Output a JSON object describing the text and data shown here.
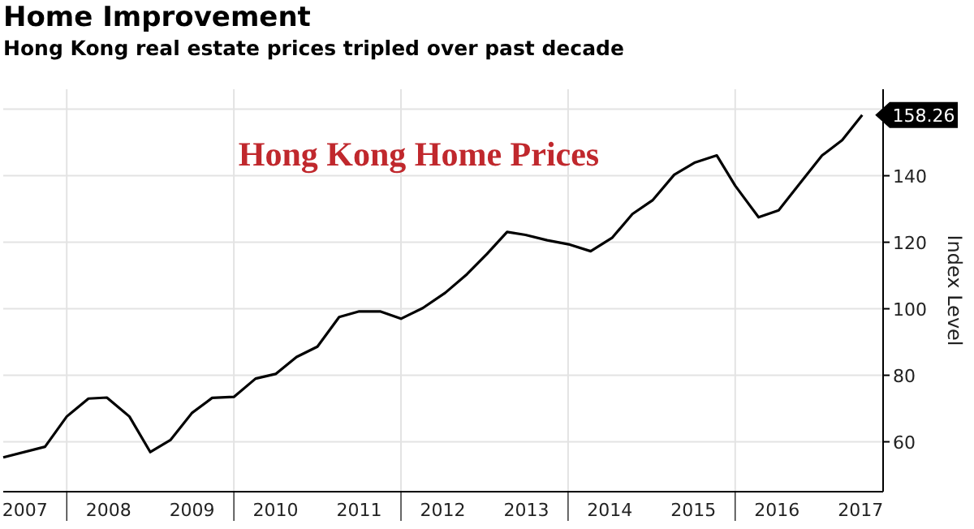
{
  "chart_data": {
    "type": "line",
    "title": "Home Improvement",
    "subtitle": "Hong Kong real estate prices tripled over past decade",
    "ylabel": "Index Level",
    "annotations": [
      "Hong Kong Home Prices",
      {
        "text": "158.26",
        "x": 2017.52,
        "y": 158.26
      }
    ],
    "x": [
      2007.24,
      2007.74,
      2008.0,
      2008.26,
      2008.48,
      2008.75,
      2009.0,
      2009.24,
      2009.5,
      2009.74,
      2010.0,
      2010.26,
      2010.5,
      2010.75,
      2011.0,
      2011.26,
      2011.5,
      2011.75,
      2012.0,
      2012.26,
      2012.53,
      2012.79,
      2013.03,
      2013.27,
      2013.49,
      2013.75,
      2014.02,
      2014.27,
      2014.53,
      2014.77,
      2015.01,
      2015.27,
      2015.52,
      2015.78,
      2016.0,
      2016.28,
      2016.52,
      2016.78,
      2017.04,
      2017.28,
      2017.52
    ],
    "series": [
      {
        "color": "#000000",
        "values": [
          55.3,
          58.5,
          67.6,
          73.0,
          73.3,
          67.6,
          56.9,
          60.5,
          68.7,
          73.2,
          73.5,
          79.0,
          80.4,
          85.5,
          88.6,
          97.5,
          99.2,
          99.2,
          97.0,
          100.2,
          104.8,
          110.4,
          116.5,
          123.1,
          122.2,
          120.6,
          119.3,
          117.3,
          121.4,
          128.5,
          132.6,
          140.3,
          144.0,
          146.1,
          137.0,
          127.5,
          129.6,
          137.9,
          146.1,
          150.7,
          158.26
        ]
      }
    ],
    "xlim": [
      2007.24,
      2017.77
    ],
    "ylim": [
      45,
      166
    ],
    "xticks": [
      {
        "value": 2007.5,
        "label": "2007"
      },
      {
        "value": 2008.5,
        "label": "2008"
      },
      {
        "value": 2009.5,
        "label": "2009"
      },
      {
        "value": 2010.5,
        "label": "2010"
      },
      {
        "value": 2011.5,
        "label": "2011"
      },
      {
        "value": 2012.5,
        "label": "2012"
      },
      {
        "value": 2013.5,
        "label": "2013"
      },
      {
        "value": 2014.5,
        "label": "2014"
      },
      {
        "value": 2015.5,
        "label": "2015"
      },
      {
        "value": 2016.5,
        "label": "2016"
      },
      {
        "value": 2017.5,
        "label": "2017"
      },
      {
        "value": 2008,
        "label": null
      },
      {
        "value": 2010,
        "label": null
      },
      {
        "value": 2012,
        "label": null
      },
      {
        "value": 2014,
        "label": null
      },
      {
        "value": 2016,
        "label": null
      }
    ],
    "yticks": [
      60,
      80,
      100,
      120,
      140,
      {
        "value": 160,
        "label": null
      }
    ],
    "grid": true,
    "marker": "none",
    "line_style": "solid"
  }
}
